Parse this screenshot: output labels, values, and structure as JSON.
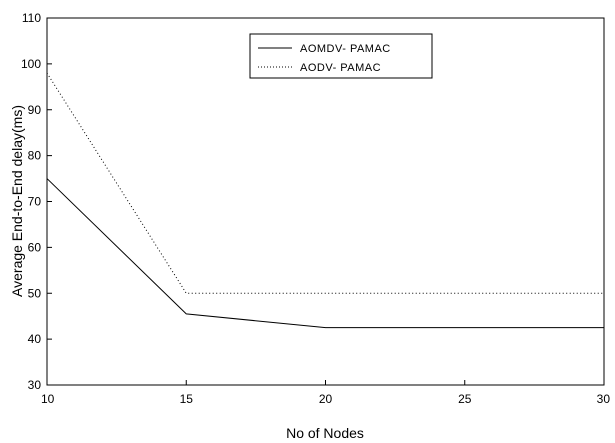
{
  "chart_data": {
    "type": "line",
    "title": "",
    "xlabel": "No of Nodes",
    "ylabel": "Average End-to-End delay(ms)",
    "xlim": [
      10,
      30
    ],
    "ylim": [
      30,
      110
    ],
    "x_ticks": [
      10,
      15,
      20,
      25,
      30
    ],
    "y_ticks": [
      30,
      40,
      50,
      60,
      70,
      80,
      90,
      100,
      110
    ],
    "grid": false,
    "legend_position": "top-center",
    "series": [
      {
        "name": "AOMDV- PAMAC",
        "style": "solid",
        "color": "#000000",
        "x": [
          10,
          15,
          20,
          25,
          30
        ],
        "y": [
          75,
          45.5,
          42.5,
          42.5,
          42.5
        ]
      },
      {
        "name": "AODV-  PAMAC",
        "style": "dotted",
        "color": "#000000",
        "x": [
          10,
          15,
          20,
          25,
          30
        ],
        "y": [
          98,
          50,
          50,
          50,
          50
        ]
      }
    ]
  }
}
